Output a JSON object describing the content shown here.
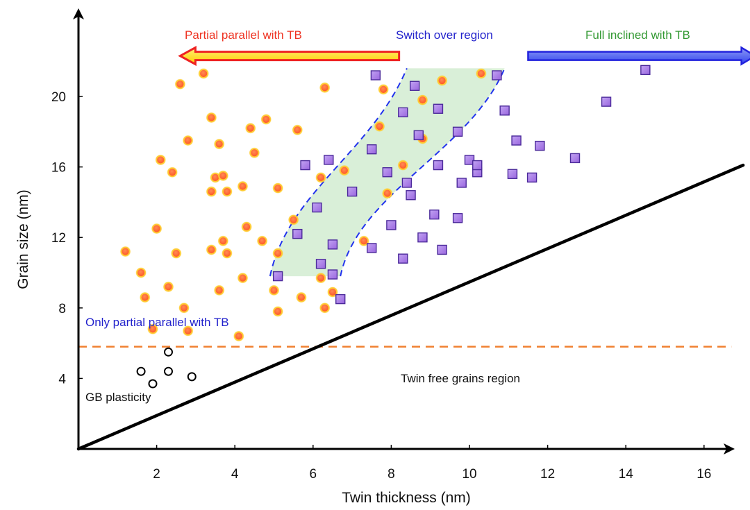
{
  "chart_data": {
    "type": "scatter",
    "title": "",
    "xlabel": "Twin thickness (nm)",
    "ylabel": "Grain size (nm)",
    "xlim": [
      0,
      17.4
    ],
    "ylim": [
      0,
      24
    ],
    "x_ticks": [
      2,
      4,
      6,
      8,
      10,
      12,
      14,
      16
    ],
    "y_ticks": [
      4,
      8,
      12,
      16,
      20
    ],
    "x_tick_labels": [
      "2",
      "4",
      "6",
      "8",
      "10",
      "12",
      "14",
      "16"
    ],
    "y_tick_labels": [
      "4",
      "8",
      "12",
      "16",
      "20"
    ],
    "grid": false,
    "colors": {
      "circle_fill": "#ff6633",
      "circle_edge": "#ffcc33",
      "square_fill": "#a070e0",
      "square_edge": "#4b2a9a",
      "switch_fill": "#d9efd8",
      "switch_edge": "#2233ee",
      "red_arrow": "#ee2222",
      "yellow_arrow": "#ffcc00",
      "blue_arrow": "#2222dd",
      "green_text": "#339933",
      "orange_line": "#f08030"
    },
    "series": [
      {
        "marker": "circle-filled",
        "points": [
          [
            1.2,
            11.2
          ],
          [
            1.6,
            10.0
          ],
          [
            1.7,
            8.6
          ],
          [
            1.9,
            6.8
          ],
          [
            2.0,
            12.5
          ],
          [
            2.1,
            16.4
          ],
          [
            2.3,
            9.2
          ],
          [
            2.4,
            15.7
          ],
          [
            2.5,
            11.1
          ],
          [
            2.6,
            20.7
          ],
          [
            2.7,
            8.0
          ],
          [
            2.8,
            17.5
          ],
          [
            2.8,
            6.7
          ],
          [
            3.2,
            21.3
          ],
          [
            3.4,
            18.8
          ],
          [
            3.4,
            14.6
          ],
          [
            3.4,
            11.3
          ],
          [
            3.5,
            15.4
          ],
          [
            3.6,
            17.3
          ],
          [
            3.6,
            9.0
          ],
          [
            3.7,
            15.5
          ],
          [
            3.7,
            11.8
          ],
          [
            3.8,
            14.6
          ],
          [
            3.8,
            11.1
          ],
          [
            4.1,
            6.4
          ],
          [
            4.2,
            14.9
          ],
          [
            4.2,
            9.7
          ],
          [
            4.3,
            12.6
          ],
          [
            4.4,
            18.2
          ],
          [
            4.5,
            16.8
          ],
          [
            4.7,
            11.8
          ],
          [
            4.8,
            18.7
          ],
          [
            5.0,
            9.0
          ],
          [
            5.1,
            14.8
          ],
          [
            5.1,
            11.1
          ],
          [
            5.1,
            7.8
          ],
          [
            5.5,
            13.0
          ],
          [
            5.6,
            18.1
          ],
          [
            5.7,
            8.6
          ],
          [
            6.2,
            15.4
          ],
          [
            6.2,
            9.7
          ],
          [
            6.3,
            8.0
          ],
          [
            6.3,
            20.5
          ],
          [
            6.5,
            8.9
          ],
          [
            6.8,
            15.8
          ],
          [
            7.3,
            11.8
          ],
          [
            7.7,
            18.3
          ],
          [
            7.8,
            20.4
          ],
          [
            7.9,
            14.5
          ],
          [
            8.3,
            16.1
          ],
          [
            8.8,
            17.6
          ],
          [
            8.8,
            19.8
          ],
          [
            9.3,
            20.9
          ],
          [
            10.3,
            21.3
          ]
        ]
      },
      {
        "marker": "square-filled",
        "points": [
          [
            5.1,
            9.8
          ],
          [
            5.6,
            12.2
          ],
          [
            5.8,
            16.1
          ],
          [
            6.1,
            13.7
          ],
          [
            6.2,
            10.5
          ],
          [
            6.4,
            16.4
          ],
          [
            6.5,
            11.6
          ],
          [
            6.5,
            9.9
          ],
          [
            6.7,
            8.5
          ],
          [
            7.0,
            14.6
          ],
          [
            7.5,
            11.4
          ],
          [
            7.5,
            17.0
          ],
          [
            7.6,
            21.2
          ],
          [
            7.9,
            15.7
          ],
          [
            8.0,
            12.7
          ],
          [
            8.3,
            19.1
          ],
          [
            8.3,
            10.8
          ],
          [
            8.4,
            15.1
          ],
          [
            8.5,
            14.4
          ],
          [
            8.6,
            20.6
          ],
          [
            8.7,
            17.8
          ],
          [
            8.8,
            12.0
          ],
          [
            9.1,
            13.3
          ],
          [
            9.2,
            16.1
          ],
          [
            9.2,
            19.3
          ],
          [
            9.3,
            11.3
          ],
          [
            9.7,
            18.0
          ],
          [
            9.7,
            13.1
          ],
          [
            9.8,
            15.1
          ],
          [
            10.0,
            16.4
          ],
          [
            10.2,
            15.7
          ],
          [
            10.2,
            16.1
          ],
          [
            10.7,
            21.2
          ],
          [
            10.9,
            19.2
          ],
          [
            11.1,
            15.6
          ],
          [
            11.2,
            17.5
          ],
          [
            11.6,
            15.4
          ],
          [
            11.8,
            17.2
          ],
          [
            12.7,
            16.5
          ],
          [
            13.5,
            19.7
          ],
          [
            14.5,
            21.5
          ]
        ]
      },
      {
        "marker": "circle-open",
        "points": [
          [
            1.6,
            4.4
          ],
          [
            1.9,
            3.7
          ],
          [
            2.3,
            5.5
          ],
          [
            2.3,
            4.4
          ],
          [
            2.9,
            4.1
          ]
        ]
      }
    ],
    "boundary_line": {
      "x": [
        0,
        17.0
      ],
      "y": [
        0,
        16.1
      ]
    },
    "threshold_line": {
      "y": 5.8,
      "x": [
        0,
        16.7
      ]
    },
    "switch_region": {
      "polygon": [
        [
          4.9,
          9.8
        ],
        [
          8.4,
          21.6
        ],
        [
          10.9,
          21.6
        ],
        [
          6.7,
          9.8
        ]
      ]
    },
    "arrows": {
      "partial_parallel": {
        "x": [
          2.6,
          8.2
        ],
        "y": 22.3
      },
      "full_inclined": {
        "x": [
          11.5,
          17.4
        ],
        "y": 22.3
      }
    },
    "annotations": {
      "partial_parallel": "Partial parallel with TB",
      "switch_over": "Switch over region",
      "full_inclined": "Full inclined with TB",
      "only_partial": "Only partial parallel with TB",
      "twin_free": "Twin free grains region",
      "gb_plasticity": "GB plasticity"
    }
  }
}
